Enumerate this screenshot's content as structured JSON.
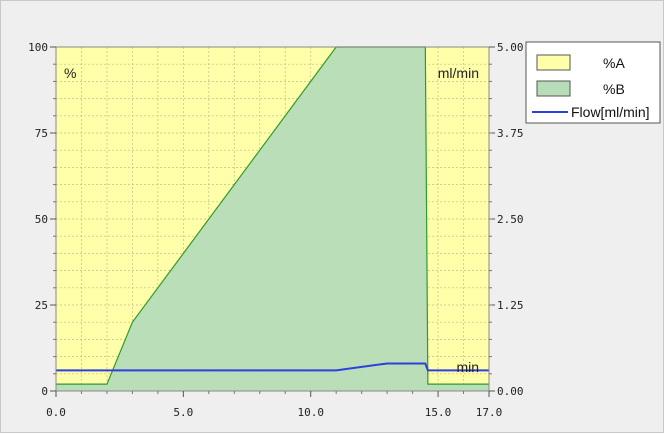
{
  "chart_data": {
    "type": "area",
    "x_ticks": [
      "0.0",
      "5.0",
      "10.0",
      "15.0",
      "17.0"
    ],
    "x_tick_values": [
      0,
      5,
      10,
      15,
      17
    ],
    "xlim": [
      0,
      17
    ],
    "ylim_left": [
      0,
      100
    ],
    "ylim_right": [
      0,
      5
    ],
    "y_left_ticks": [
      "0",
      "25",
      "50",
      "75",
      "100"
    ],
    "y_left_tick_values": [
      0,
      25,
      50,
      75,
      100
    ],
    "y_right_ticks": [
      "0.00",
      "1.25",
      "2.50",
      "3.75",
      "5.00"
    ],
    "y_right_tick_values": [
      0,
      1.25,
      2.5,
      3.75,
      5
    ],
    "left_unit_label": "%",
    "right_unit_label": "ml/min",
    "x_unit_label": "min",
    "grid": true,
    "legend_position": "right",
    "series": [
      {
        "name": "%A",
        "color": "#ffffaa",
        "x": [
          0,
          17
        ],
        "values": [
          100,
          100
        ]
      },
      {
        "name": "%B",
        "color": "#b6ddb8",
        "line_color": "#2e9b2e",
        "x": [
          0,
          2,
          3,
          11,
          14.5,
          14.6,
          17
        ],
        "values": [
          2,
          2,
          20,
          100,
          100,
          2,
          2
        ]
      },
      {
        "name": "Flow[ml/min]",
        "color": "#2d3fe0",
        "axis": "right",
        "x": [
          0,
          11,
          13,
          14.5,
          14.6,
          17
        ],
        "values": [
          0.3,
          0.3,
          0.4,
          0.4,
          0.3,
          0.3
        ]
      }
    ]
  }
}
